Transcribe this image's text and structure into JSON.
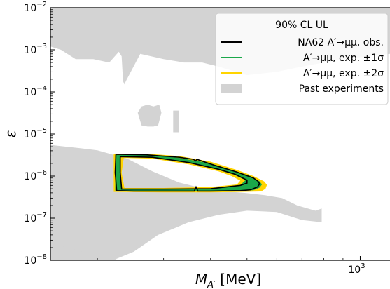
{
  "chart_data": {
    "type": "area",
    "x_scale": "log",
    "y_scale": "log",
    "xlabel_main": "M",
    "xlabel_sub": "A′",
    "xlabel_unit": " [MeV]",
    "ylabel": "ε",
    "xlim": [
      150,
      1200
    ],
    "ylim": [
      1e-08,
      0.01
    ],
    "x_ticks": [
      {
        "value": 1000,
        "base": "10",
        "exp": "3"
      }
    ],
    "y_ticks": [
      {
        "value": 1e-08,
        "base": "10",
        "exp": "−8"
      },
      {
        "value": 1e-07,
        "base": "10",
        "exp": "−7"
      },
      {
        "value": 1e-06,
        "base": "10",
        "exp": "−6"
      },
      {
        "value": 1e-05,
        "base": "10",
        "exp": "−5"
      },
      {
        "value": 0.0001,
        "base": "10",
        "exp": "−4"
      },
      {
        "value": 0.001,
        "base": "10",
        "exp": "−3"
      },
      {
        "value": 0.01,
        "base": "10",
        "exp": "−2"
      }
    ],
    "legend": {
      "title": "90% CL UL",
      "placement": "top-right",
      "entries": [
        {
          "id": "obs",
          "label": "NA62 A′→μμ, obs.",
          "style": "line",
          "color": "#000000"
        },
        {
          "id": "exp1",
          "label": "A′→μμ, exp. ±1σ",
          "style": "line",
          "color": "#1aa84a"
        },
        {
          "id": "exp2",
          "label": "A′→μμ, exp. ±2σ",
          "style": "line",
          "color": "#ffd400"
        },
        {
          "id": "past",
          "label": "Past experiments",
          "style": "patch",
          "color": "#d3d3d3"
        }
      ]
    },
    "colors": {
      "past": "#d3d3d3",
      "exp2": "#ffd400",
      "exp1": "#1aa84a",
      "obs": "#000000"
    },
    "regions": {
      "past_upper": [
        [
          150,
          0.01
        ],
        [
          1200,
          0.01
        ],
        [
          1200,
          0.0008
        ],
        [
          900,
          0.0006
        ],
        [
          700,
          0.0004
        ],
        [
          600,
          0.0003
        ],
        [
          500,
          0.00025
        ],
        [
          420,
          0.0004
        ],
        [
          380,
          0.0005
        ],
        [
          340,
          0.0005
        ],
        [
          300,
          0.0006
        ],
        [
          260,
          0.0008
        ],
        [
          238,
          0.00018
        ],
        [
          236,
          0.00015
        ],
        [
          234,
          0.00018
        ],
        [
          232,
          0.0007
        ],
        [
          228,
          0.0009
        ],
        [
          215,
          0.0005
        ],
        [
          195,
          0.0006
        ],
        [
          175,
          0.0006
        ],
        [
          160,
          0.001
        ],
        [
          150,
          0.0012
        ]
      ],
      "past_blob1": [
        [
          256,
          3.2e-05
        ],
        [
          262,
          4.5e-05
        ],
        [
          272,
          5e-05
        ],
        [
          282,
          4.5e-05
        ],
        [
          292,
          5e-05
        ],
        [
          296,
          3.2e-05
        ],
        [
          290,
          1.6e-05
        ],
        [
          282,
          1.5e-05
        ],
        [
          272,
          1.5e-05
        ],
        [
          262,
          1.6e-05
        ]
      ],
      "past_blob2": [
        [
          318,
          3.6e-05
        ],
        [
          330,
          3.6e-05
        ],
        [
          330,
          1.1e-05
        ],
        [
          318,
          1.1e-05
        ]
      ],
      "past_lower": [
        [
          150,
          5.5e-06
        ],
        [
          180,
          4.6e-06
        ],
        [
          200,
          4.1e-06
        ],
        [
          240,
          2.6e-06
        ],
        [
          280,
          1.3e-06
        ],
        [
          330,
          7e-07
        ],
        [
          400,
          4.6e-07
        ],
        [
          490,
          4e-07
        ],
        [
          560,
          3.5e-07
        ],
        [
          620,
          3e-07
        ],
        [
          680,
          2e-07
        ],
        [
          760,
          1.5e-07
        ],
        [
          790,
          1.7e-07
        ],
        [
          790,
          8e-08
        ],
        [
          700,
          9e-08
        ],
        [
          600,
          1.4e-07
        ],
        [
          500,
          1.5e-07
        ],
        [
          420,
          1.2e-07
        ],
        [
          350,
          8e-08
        ],
        [
          290,
          4e-08
        ],
        [
          250,
          1.6e-08
        ],
        [
          220,
          1e-08
        ],
        [
          150,
          1e-08
        ]
      ],
      "past_bottom_left": [
        [
          150,
          2.6e-08
        ],
        [
          200,
          1.3e-08
        ],
        [
          230,
          1e-08
        ],
        [
          150,
          1e-08
        ]
      ],
      "exp2_band": [
        [
          223,
          3.4e-06
        ],
        [
          270,
          3.4e-06
        ],
        [
          330,
          3e-06
        ],
        [
          400,
          2.2e-06
        ],
        [
          470,
          1.4e-06
        ],
        [
          520,
          1e-06
        ],
        [
          555,
          7.5e-07
        ],
        [
          565,
          6.2e-07
        ],
        [
          560,
          5e-07
        ],
        [
          545,
          4.3e-07
        ],
        [
          480,
          4.2e-07
        ],
        [
          400,
          4.1e-07
        ],
        [
          300,
          4.1e-07
        ],
        [
          223,
          4.2e-07
        ],
        [
          221,
          4.2e-07
        ],
        [
          221,
          3.4e-06
        ]
      ],
      "exp2_hole": [
        [
          235,
          2.7e-06
        ],
        [
          280,
          2.6e-06
        ],
        [
          350,
          1.9e-06
        ],
        [
          420,
          1.3e-06
        ],
        [
          455,
          1e-06
        ],
        [
          480,
          7.8e-07
        ],
        [
          470,
          6.3e-07
        ],
        [
          400,
          5.5e-07
        ],
        [
          300,
          5.2e-07
        ],
        [
          236,
          5.2e-07
        ],
        [
          232,
          1.2e-06
        ]
      ],
      "exp1_band": [
        [
          223,
          3.2e-06
        ],
        [
          270,
          3.2e-06
        ],
        [
          330,
          2.7e-06
        ],
        [
          400,
          2e-06
        ],
        [
          460,
          1.35e-06
        ],
        [
          510,
          1e-06
        ],
        [
          540,
          7.5e-07
        ],
        [
          548,
          6.3e-07
        ],
        [
          540,
          5.3e-07
        ],
        [
          520,
          4.6e-07
        ],
        [
          480,
          4.5e-07
        ],
        [
          400,
          4.4e-07
        ],
        [
          300,
          4.4e-07
        ],
        [
          225,
          4.5e-07
        ],
        [
          223,
          4.5e-07
        ]
      ],
      "exp1_hole": [
        [
          230,
          2.9e-06
        ],
        [
          280,
          2.8e-06
        ],
        [
          350,
          2.1e-06
        ],
        [
          420,
          1.4e-06
        ],
        [
          460,
          1.1e-06
        ],
        [
          495,
          8e-07
        ],
        [
          480,
          6.1e-07
        ],
        [
          400,
          5.1e-07
        ],
        [
          300,
          4.9e-07
        ],
        [
          232,
          4.9e-07
        ],
        [
          230,
          1.2e-06
        ]
      ],
      "obs_outer": [
        [
          224,
          3.3e-06
        ],
        [
          270,
          3.2e-06
        ],
        [
          330,
          2.8e-06
        ],
        [
          360,
          2.5e-06
        ],
        [
          365,
          2.3e-06
        ],
        [
          368,
          2.5e-06
        ],
        [
          410,
          1.8e-06
        ],
        [
          470,
          1.25e-06
        ],
        [
          520,
          9e-07
        ],
        [
          535,
          7.5e-07
        ],
        [
          540,
          6.5e-07
        ],
        [
          533,
          5.5e-07
        ],
        [
          510,
          4.7e-07
        ],
        [
          480,
          4.5e-07
        ],
        [
          400,
          4.4e-07
        ],
        [
          370,
          4.4e-07
        ],
        [
          366,
          5.5e-07
        ],
        [
          362,
          4.4e-07
        ],
        [
          300,
          4.4e-07
        ],
        [
          250,
          4.4e-07
        ],
        [
          225,
          4.5e-07
        ],
        [
          223,
          1.2e-06
        ],
        [
          224,
          3.3e-06
        ]
      ],
      "obs_inner": [
        [
          230,
          2.9e-06
        ],
        [
          280,
          2.8e-06
        ],
        [
          350,
          2.1e-06
        ],
        [
          420,
          1.45e-06
        ],
        [
          465,
          1.1e-06
        ],
        [
          500,
          8e-07
        ],
        [
          500,
          6.8e-07
        ],
        [
          480,
          6e-07
        ],
        [
          400,
          5e-07
        ],
        [
          300,
          4.9e-07
        ],
        [
          232,
          4.9e-07
        ],
        [
          230,
          1.2e-06
        ],
        [
          230,
          2.9e-06
        ]
      ]
    }
  }
}
